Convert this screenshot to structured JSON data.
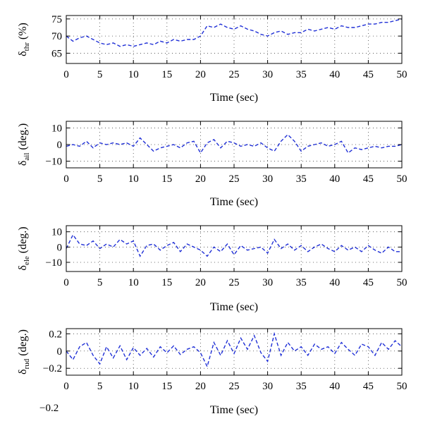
{
  "chart_data": [
    {
      "type": "line",
      "ylabel_base": "δ",
      "ylabel_sub": "thr",
      "ylabel_unit": " (%)",
      "xlabel": "Time (sec)",
      "xlim": [
        0,
        50
      ],
      "ylim": [
        62,
        76
      ],
      "xticks": [
        0,
        5,
        10,
        15,
        20,
        25,
        30,
        35,
        40,
        45,
        50
      ],
      "yticks": [
        65,
        70,
        75
      ],
      "grid": true,
      "color": "#1f2fd6",
      "linestyle": "dashed",
      "x": [
        0,
        1,
        2,
        3,
        4,
        5,
        6,
        7,
        8,
        9,
        10,
        11,
        12,
        13,
        14,
        15,
        16,
        17,
        18,
        19,
        20,
        21,
        22,
        23,
        24,
        25,
        26,
        27,
        28,
        29,
        30,
        31,
        32,
        33,
        34,
        35,
        36,
        37,
        38,
        39,
        40,
        41,
        42,
        43,
        44,
        45,
        46,
        47,
        48,
        49,
        50
      ],
      "y": [
        70,
        68.5,
        69.5,
        70,
        69,
        68,
        67.5,
        68,
        67,
        67.5,
        67,
        67.5,
        68,
        67.5,
        68.5,
        68,
        69,
        68.5,
        69,
        69,
        70,
        73,
        72.5,
        73.5,
        72.5,
        72,
        73,
        72,
        71.5,
        70.5,
        70,
        71,
        71.5,
        70.5,
        71,
        71,
        72,
        71.5,
        72,
        72.5,
        72,
        73,
        72.5,
        72.5,
        73,
        73.5,
        73.5,
        74,
        74,
        74.5,
        75
      ]
    },
    {
      "type": "line",
      "ylabel_base": "δ",
      "ylabel_sub": "ail",
      "ylabel_unit": " (deg.)",
      "xlabel": "Time (sec)",
      "xlim": [
        0,
        50
      ],
      "ylim": [
        -14,
        14
      ],
      "xticks": [
        0,
        5,
        10,
        15,
        20,
        25,
        30,
        35,
        40,
        45,
        50
      ],
      "yticks": [
        -10,
        0,
        10
      ],
      "grid": true,
      "color": "#1f2fd6",
      "linestyle": "dashed",
      "x": [
        0,
        1,
        2,
        3,
        4,
        5,
        6,
        7,
        8,
        9,
        10,
        11,
        12,
        13,
        14,
        15,
        16,
        17,
        18,
        19,
        20,
        21,
        22,
        23,
        24,
        25,
        26,
        27,
        28,
        29,
        30,
        31,
        32,
        33,
        34,
        35,
        36,
        37,
        38,
        39,
        40,
        41,
        42,
        43,
        44,
        45,
        46,
        47,
        48,
        49,
        50
      ],
      "y": [
        -1,
        0,
        -1,
        2,
        -2,
        1,
        0,
        1,
        0,
        1,
        -1,
        4,
        0,
        -4,
        -2,
        -1,
        0,
        -2,
        1,
        2,
        -5,
        1,
        3,
        -2,
        2,
        1,
        -1,
        0,
        -1,
        1,
        -2,
        -4,
        2,
        6,
        2,
        -4,
        -1,
        0,
        1,
        -1,
        0,
        2,
        -5,
        -2,
        -3,
        -2,
        -1,
        -2,
        -1,
        -1,
        0
      ]
    },
    {
      "type": "line",
      "ylabel_base": "δ",
      "ylabel_sub": "ele",
      "ylabel_unit": " (deg.)",
      "xlabel": "Time (sec)",
      "xlim": [
        0,
        50
      ],
      "ylim": [
        -16,
        14
      ],
      "xticks": [
        0,
        5,
        10,
        15,
        20,
        25,
        30,
        35,
        40,
        45,
        50
      ],
      "yticks": [
        -10,
        0,
        10
      ],
      "grid": true,
      "color": "#1f2fd6",
      "linestyle": "dashed",
      "x": [
        0,
        1,
        2,
        3,
        4,
        5,
        6,
        7,
        8,
        9,
        10,
        11,
        12,
        13,
        14,
        15,
        16,
        17,
        18,
        19,
        20,
        21,
        22,
        23,
        24,
        25,
        26,
        27,
        28,
        29,
        30,
        31,
        32,
        33,
        34,
        35,
        36,
        37,
        38,
        39,
        40,
        41,
        42,
        43,
        44,
        45,
        46,
        47,
        48,
        49,
        50
      ],
      "y": [
        -1,
        8,
        2,
        1,
        4,
        -1,
        2,
        0,
        5,
        2,
        4,
        -6,
        1,
        2,
        -2,
        1,
        3,
        -3,
        2,
        0,
        -2,
        -6,
        0,
        -3,
        2,
        -5,
        1,
        -2,
        -1,
        0,
        -4,
        5,
        -1,
        2,
        -2,
        1,
        -3,
        0,
        2,
        -1,
        -3,
        1,
        -2,
        0,
        -3,
        1,
        -2,
        -4,
        0,
        -3,
        -3
      ]
    },
    {
      "type": "line",
      "ylabel_base": "δ",
      "ylabel_sub": "rud",
      "ylabel_unit": " (deg.)",
      "xlabel": "Time (sec)",
      "xlim": [
        0,
        50
      ],
      "ylim": [
        -0.28,
        0.26
      ],
      "xticks": [
        0,
        5,
        10,
        15,
        20,
        25,
        30,
        35,
        40,
        45,
        50
      ],
      "yticks": [
        -0.2,
        0,
        0.2
      ],
      "ytick_labels": [
        "−0.2",
        "0",
        "0.2"
      ],
      "grid": true,
      "color": "#1f2fd6",
      "linestyle": "dashed",
      "x": [
        0,
        1,
        2,
        3,
        4,
        5,
        6,
        7,
        8,
        9,
        10,
        11,
        12,
        13,
        14,
        15,
        16,
        17,
        18,
        19,
        20,
        21,
        22,
        23,
        24,
        25,
        26,
        27,
        28,
        29,
        30,
        31,
        32,
        33,
        34,
        35,
        36,
        37,
        38,
        39,
        40,
        41,
        42,
        43,
        44,
        45,
        46,
        47,
        48,
        49,
        50
      ],
      "y": [
        0,
        -0.1,
        0.05,
        0.1,
        -0.05,
        -0.15,
        0.05,
        -0.08,
        0.06,
        -0.1,
        0.04,
        -0.05,
        0.03,
        -0.07,
        0.05,
        -0.02,
        0.06,
        -0.04,
        0.02,
        0.05,
        -0.02,
        -0.18,
        0.1,
        -0.05,
        0.12,
        -0.03,
        0.15,
        0.02,
        0.18,
        -0.02,
        -0.12,
        0.2,
        -0.05,
        0.1,
        0,
        0.05,
        -0.05,
        0.08,
        0.02,
        0.05,
        -0.03,
        0.1,
        0.02,
        -0.05,
        0.08,
        0.05,
        -0.05,
        0.1,
        0.02,
        0.12,
        0.05
      ]
    }
  ],
  "stray_label": "−0.2"
}
